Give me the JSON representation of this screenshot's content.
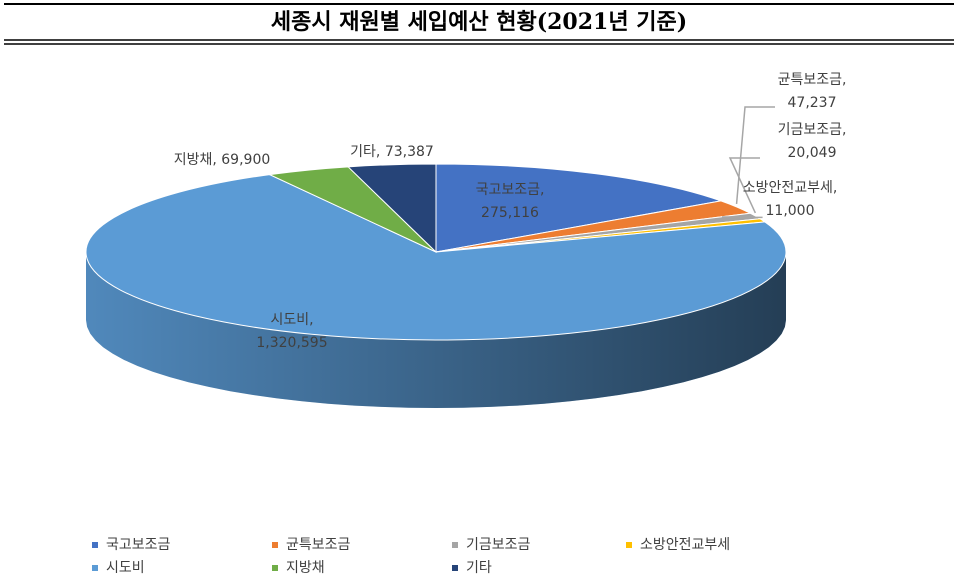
{
  "chart_data": {
    "type": "pie3d",
    "title": "세종시 재원별 세입예산 현황(2021년 기준)",
    "categories": [
      "국고보조금",
      "균특보조금",
      "기금보조금",
      "소방안전교부세",
      "시도비",
      "지방채",
      "기타"
    ],
    "values": [
      275116,
      47237,
      20049,
      11000,
      1320595,
      69900,
      73387
    ],
    "value_labels": [
      "국고보조금,\n275,116",
      "균특보조금,\n47,237",
      "기금보조금,\n20,049",
      "소방안전교부세,\n11,000",
      "시도비,\n1,320,595",
      "지방채, 69,900",
      "기타, 73,387"
    ],
    "colors": [
      "#4472c4",
      "#ed7d31",
      "#a5a5a5",
      "#ffc000",
      "#5b9bd5",
      "#70ad47",
      "#264478"
    ],
    "legend": "bottom"
  }
}
